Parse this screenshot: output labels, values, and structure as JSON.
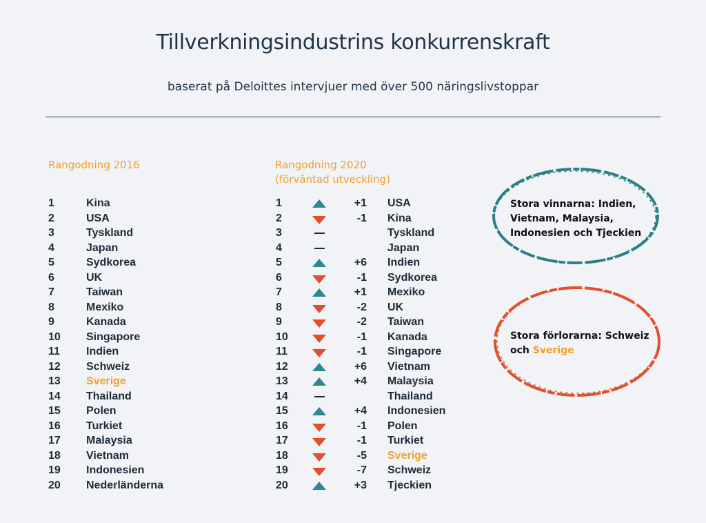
{
  "header": {
    "title": "Tillverkningsindustrins konkurrenskraft",
    "subtitle": "baserat på Deloittes intervjuer med över 500 näringslivstoppar"
  },
  "columns": {
    "head_2016": "Rangodning 2016",
    "head_2020_line1": "Rangodning 2020",
    "head_2020_line2": "(förväntad utveckling)"
  },
  "colors": {
    "accent_orange": "#f0a02a",
    "up_teal": "#2a8a8f",
    "down_red": "#e0502a",
    "background": "#f1f3f6"
  },
  "ranking_2016": [
    {
      "rank": "1",
      "country": "Kina"
    },
    {
      "rank": "2",
      "country": "USA"
    },
    {
      "rank": "3",
      "country": "Tyskland"
    },
    {
      "rank": "4",
      "country": "Japan"
    },
    {
      "rank": "5",
      "country": "Sydkorea"
    },
    {
      "rank": "6",
      "country": "UK"
    },
    {
      "rank": "7",
      "country": "Taiwan"
    },
    {
      "rank": "8",
      "country": "Mexiko"
    },
    {
      "rank": "9",
      "country": "Kanada"
    },
    {
      "rank": "10",
      "country": "Singapore"
    },
    {
      "rank": "11",
      "country": "Indien"
    },
    {
      "rank": "12",
      "country": "Schweiz"
    },
    {
      "rank": "13",
      "country": "Sverige",
      "highlight": true
    },
    {
      "rank": "14",
      "country": "Thailand"
    },
    {
      "rank": "15",
      "country": "Polen"
    },
    {
      "rank": "16",
      "country": "Turkiet"
    },
    {
      "rank": "17",
      "country": "Malaysia"
    },
    {
      "rank": "18",
      "country": "Vietnam"
    },
    {
      "rank": "19",
      "country": "Indonesien"
    },
    {
      "rank": "20",
      "country": "Nederländerna"
    }
  ],
  "ranking_2020": [
    {
      "rank": "1",
      "trend": "up",
      "change": "+1",
      "country": "USA"
    },
    {
      "rank": "2",
      "trend": "down",
      "change": "-1",
      "country": "Kina"
    },
    {
      "rank": "3",
      "trend": "same",
      "change": "",
      "country": "Tyskland"
    },
    {
      "rank": "4",
      "trend": "same",
      "change": "",
      "country": "Japan"
    },
    {
      "rank": "5",
      "trend": "up",
      "change": "+6",
      "country": "Indien"
    },
    {
      "rank": "6",
      "trend": "down",
      "change": "-1",
      "country": "Sydkorea"
    },
    {
      "rank": "7",
      "trend": "up",
      "change": "+1",
      "country": "Mexiko"
    },
    {
      "rank": "8",
      "trend": "down",
      "change": "-2",
      "country": "UK"
    },
    {
      "rank": "9",
      "trend": "down",
      "change": "-2",
      "country": "Taiwan"
    },
    {
      "rank": "10",
      "trend": "down",
      "change": "-1",
      "country": "Kanada"
    },
    {
      "rank": "11",
      "trend": "down",
      "change": "-1",
      "country": "Singapore"
    },
    {
      "rank": "12",
      "trend": "up",
      "change": "+6",
      "country": "Vietnam"
    },
    {
      "rank": "13",
      "trend": "up",
      "change": "+4",
      "country": "Malaysia"
    },
    {
      "rank": "14",
      "trend": "same",
      "change": "",
      "country": "Thailand"
    },
    {
      "rank": "15",
      "trend": "up",
      "change": "+4",
      "country": "Indonesien"
    },
    {
      "rank": "16",
      "trend": "down",
      "change": "-1",
      "country": "Polen"
    },
    {
      "rank": "17",
      "trend": "down",
      "change": "-1",
      "country": "Turkiet"
    },
    {
      "rank": "18",
      "trend": "down",
      "change": "-5",
      "country": "Sverige",
      "highlight": true
    },
    {
      "rank": "19",
      "trend": "down",
      "change": "-7",
      "country": "Schweiz"
    },
    {
      "rank": "20",
      "trend": "up",
      "change": "+3",
      "country": "Tjeckien"
    }
  ],
  "callouts": {
    "winners": "Stora vinnarna: Indien, Vietnam, Malaysia, Indonesien och Tjeckien",
    "losers_prefix": "Stora förlorarna: Schweiz och ",
    "losers_highlight": "Sverige"
  }
}
